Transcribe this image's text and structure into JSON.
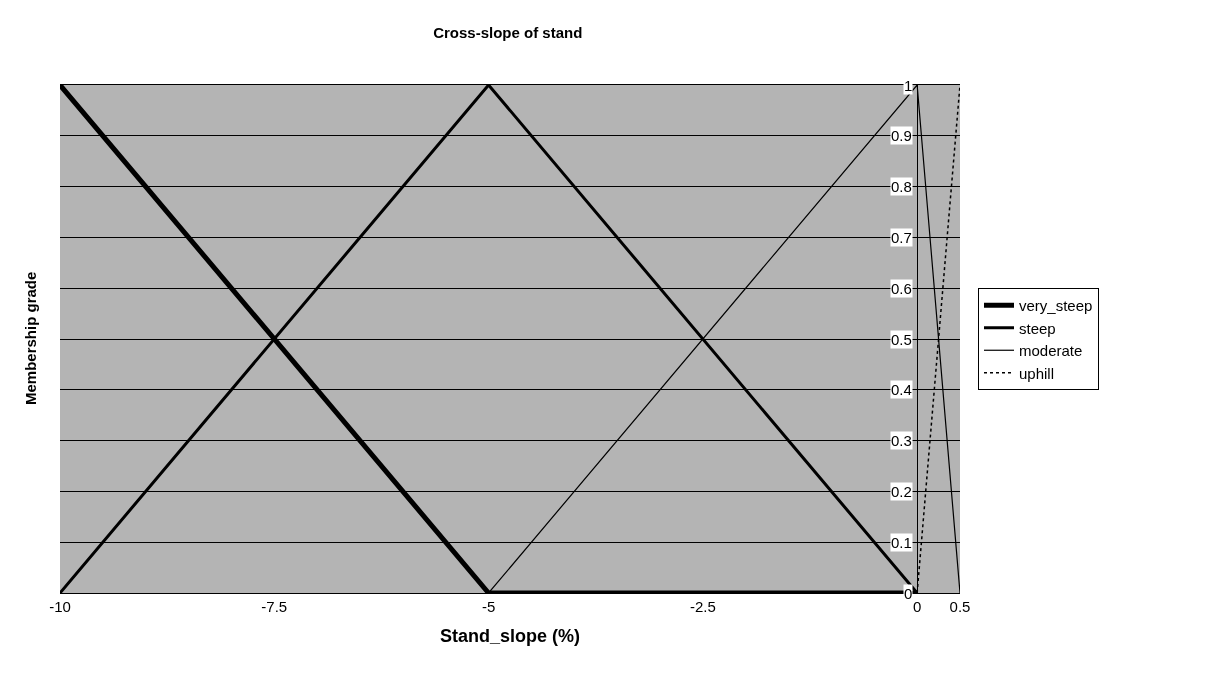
{
  "chart_data": {
    "type": "line",
    "title": "Cross-slope of stand",
    "xlabel": "Stand_slope (%)",
    "ylabel": "Membership grade",
    "xlim": [
      -10,
      0.5
    ],
    "xticks": [
      -10,
      -7.5,
      -5,
      -2.5,
      0,
      0.5
    ],
    "ylim": [
      0,
      1
    ],
    "yticks": [
      0,
      0.1,
      0.2,
      0.3,
      0.4,
      0.5,
      0.6,
      0.7,
      0.8,
      0.9,
      1
    ],
    "grid": "y",
    "legend": "right",
    "marker": "none",
    "series": [
      {
        "name": "very_steep",
        "color": "#000000",
        "x": [
          -10,
          -5,
          0
        ],
        "values": [
          1,
          0,
          0
        ],
        "line_style": "solid"
      },
      {
        "name": "steep",
        "color": "#000000",
        "x": [
          -10,
          -5,
          0
        ],
        "values": [
          0,
          1,
          0
        ],
        "line_style": "solid"
      },
      {
        "name": "moderate",
        "color": "#000000",
        "x": [
          -5,
          0,
          0.5
        ],
        "values": [
          0,
          1,
          0
        ],
        "line_style": "solid"
      },
      {
        "name": "uphill",
        "color": "#000000",
        "x": [
          0,
          0.5
        ],
        "values": [
          0,
          1
        ],
        "line_style": "dotted"
      }
    ]
  }
}
